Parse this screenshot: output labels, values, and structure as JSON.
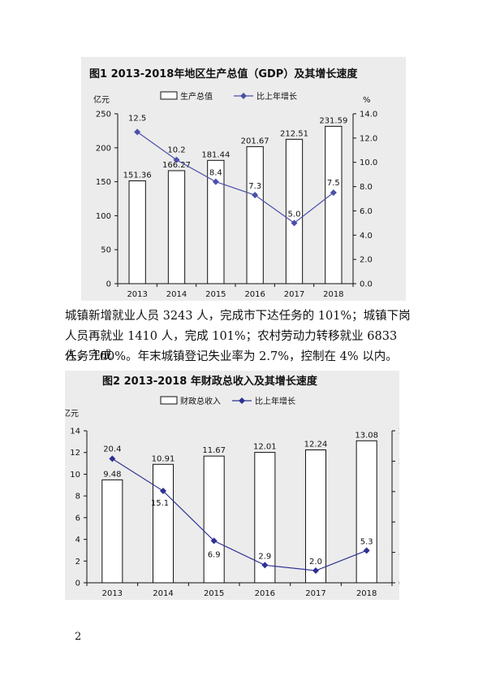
{
  "paragraph": {
    "line1": "城镇新增就业人员 3243 人，完成市下达任务的 101%；城镇下岗",
    "line2": "人员再就业 1410 人，完成 101%；农村劳动力转移就业 6833 人，完成",
    "line3": "任务 100%。年末城镇登记失业率为 2.7%，控制在 4% 以内。"
  },
  "page_number": "2",
  "chart_data": [
    {
      "type": "bar",
      "title": "图1  2013-2018年地区生产总值（GDP）及其增长速度",
      "categories": [
        "2013",
        "2014",
        "2015",
        "2016",
        "2017",
        "2018"
      ],
      "ylabel_left": "亿元",
      "ylabel_right": "%",
      "ylim_left": [
        0,
        250
      ],
      "yticks_left": [
        "0",
        "50",
        "100",
        "150",
        "200",
        "250"
      ],
      "ylim_right": [
        0,
        14
      ],
      "yticks_right": [
        "0.0",
        "2.0",
        "4.0",
        "6.0",
        "8.0",
        "10.0",
        "12.0",
        "14.0"
      ],
      "legend_position": "top",
      "series": [
        {
          "name": "生产总值",
          "kind": "bar",
          "values": [
            151.36,
            166.27,
            181.44,
            201.67,
            212.51,
            231.59
          ],
          "labels": [
            "151.36",
            "166.27",
            "181.44",
            "201.67",
            "212.51",
            "231.59"
          ]
        },
        {
          "name": "比上年增长",
          "kind": "line",
          "axis": "right",
          "values": [
            12.5,
            10.2,
            8.4,
            7.3,
            5.0,
            7.5
          ],
          "labels": [
            "12.5",
            "10.2",
            "8.4",
            "7.3",
            "5.0",
            "7.5"
          ],
          "color": "#4b4fa8"
        }
      ]
    },
    {
      "type": "bar",
      "title": "图2    2013-2018 年财政总收入及其增长速度",
      "categories": [
        "2013",
        "2014",
        "2015",
        "2016",
        "2017",
        "2018"
      ],
      "ylabel_left": "亿元",
      "ylabel_right": "%",
      "ylim_left": [
        0,
        14
      ],
      "yticks_left": [
        "0",
        "2",
        "4",
        "6",
        "8",
        "10",
        "12",
        "14"
      ],
      "ylim_right": [
        0,
        25
      ],
      "yticks_right": [
        "0.0",
        "5.0",
        "10.0",
        "15.0",
        "20.0",
        "25.0"
      ],
      "legend_position": "top",
      "series": [
        {
          "name": "财政总收入",
          "kind": "bar",
          "values": [
            9.48,
            10.91,
            11.67,
            12.01,
            12.24,
            13.08
          ],
          "labels": [
            "9.48",
            "10.91",
            "11.67",
            "12.01",
            "12.24",
            "13.08"
          ]
        },
        {
          "name": "比上年增长",
          "kind": "line",
          "axis": "right",
          "values": [
            20.4,
            15.1,
            6.9,
            2.9,
            2.0,
            5.3
          ],
          "labels": [
            "20.4",
            "15.1",
            "6.9",
            "2.9",
            "2.0",
            "5.3"
          ],
          "color": "#2e3192"
        }
      ]
    }
  ]
}
